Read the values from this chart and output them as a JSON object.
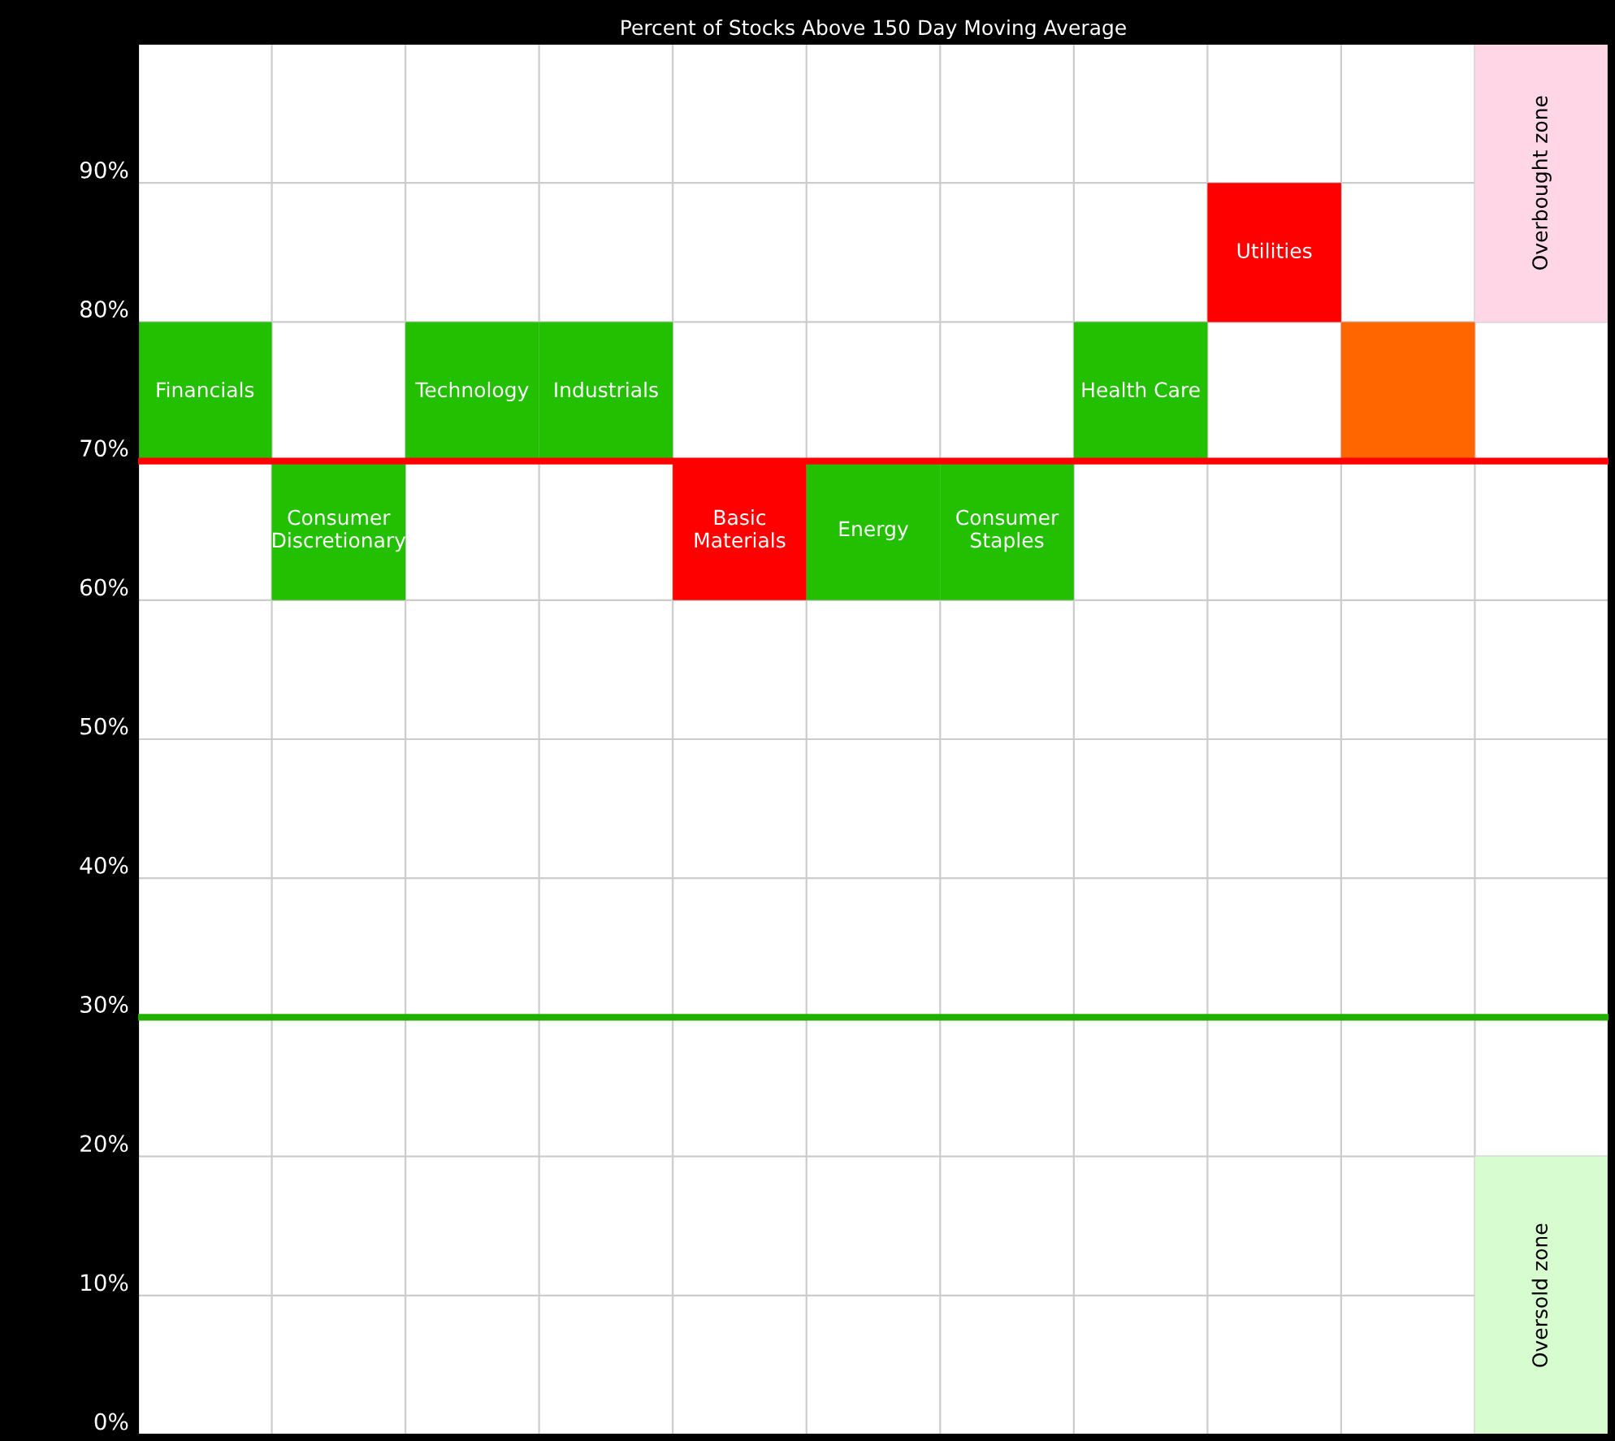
{
  "chart_data": {
    "type": "bar",
    "title": "Percent of Stocks Above 150 Day Moving Average",
    "categories": [
      "Financials",
      "Consumer\nDiscretionary",
      "Technology",
      "Industrials",
      "Basic\nMaterials",
      "Energy",
      "Consumer\nStaples",
      "Health Care",
      "Utilities",
      null,
      null
    ],
    "series": [
      {
        "values": [
          10,
          10,
          10,
          10,
          10,
          10,
          10,
          10,
          10,
          10,
          null
        ],
        "base": [
          70,
          60,
          70,
          70,
          60,
          60,
          60,
          70,
          80,
          70,
          null
        ],
        "colors": [
          "#22c000",
          "#22c000",
          "#22c000",
          "#22c000",
          "#ff0000",
          "#22c000",
          "#22c000",
          "#22c000",
          "#ff0000",
          "#ff6600",
          null
        ]
      },
      {
        "values": [
          null,
          null,
          null,
          null,
          null,
          null,
          null,
          null,
          null,
          null,
          20
        ],
        "base": [
          null,
          null,
          null,
          null,
          null,
          null,
          null,
          null,
          null,
          null,
          80
        ],
        "color": "#ffd6e6"
      },
      {
        "values": [
          null,
          null,
          null,
          null,
          null,
          null,
          null,
          null,
          null,
          null,
          20
        ],
        "base": [
          null,
          null,
          null,
          null,
          null,
          null,
          null,
          null,
          null,
          null,
          0
        ],
        "color": "#d6fcd0"
      }
    ],
    "annotations": [
      "Overbought zone",
      "Oversold zone"
    ],
    "ylim": [
      0,
      100
    ],
    "yticks": [
      {
        "value": 0,
        "label": "0%"
      },
      {
        "value": 10,
        "label": "10%"
      },
      {
        "value": 20,
        "label": "20%"
      },
      {
        "value": 30,
        "label": "30%"
      },
      {
        "value": 40,
        "label": "40%"
      },
      {
        "value": 50,
        "label": "50%"
      },
      {
        "value": 60,
        "label": "60%"
      },
      {
        "value": 70,
        "label": "70%"
      },
      {
        "value": 80,
        "label": "80%"
      },
      {
        "value": 90,
        "label": "90%"
      }
    ],
    "ref_lines": [
      {
        "axis": "y",
        "value": 70,
        "color": "#ff0000"
      },
      {
        "axis": "y",
        "value": 30,
        "color": "#22b000"
      }
    ],
    "grid": true,
    "tick_labels": "y"
  }
}
